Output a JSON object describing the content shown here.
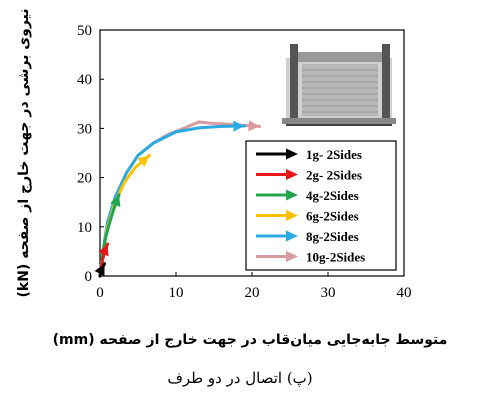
{
  "chart_data": {
    "type": "line",
    "ylabel": "نیروی برشی در جهت خارج از صفحه (kN)",
    "xlabel": "متوسط جابه‌جایی میان‌قاب در جهت خارج از صفحه (mm)",
    "caption": "(پ) اتصال در دو طرف",
    "xlim": [
      0,
      40
    ],
    "ylim": [
      0,
      50
    ],
    "xticks": [
      0,
      10,
      20,
      30,
      40
    ],
    "yticks": [
      0,
      10,
      20,
      30,
      40,
      50
    ],
    "legend_position": "bottom-right",
    "grid": false,
    "inset_image": "wall-specimen-schematic",
    "series": [
      {
        "name": "1g- 2Sides",
        "color": "#000000",
        "points": [
          [
            0,
            0
          ],
          [
            0.3,
            1.6
          ],
          [
            0.6,
            2.5
          ]
        ]
      },
      {
        "name": "2g- 2Sides",
        "color": "#e8161b",
        "points": [
          [
            0,
            0
          ],
          [
            0.3,
            3
          ],
          [
            0.6,
            5
          ],
          [
            1.0,
            6.5
          ]
        ]
      },
      {
        "name": "4g-2Sides",
        "color": "#21a64b",
        "points": [
          [
            0,
            0
          ],
          [
            0.3,
            4
          ],
          [
            0.7,
            7.5
          ],
          [
            1.2,
            10.5
          ],
          [
            1.8,
            13.5
          ],
          [
            2.5,
            16.5
          ]
        ]
      },
      {
        "name": "6g-2Sides",
        "color": "#ffc000",
        "points": [
          [
            0,
            0
          ],
          [
            0.4,
            5
          ],
          [
            1.0,
            10
          ],
          [
            2,
            15
          ],
          [
            3.2,
            19
          ],
          [
            4.6,
            22
          ],
          [
            6.5,
            24.5
          ]
        ]
      },
      {
        "name": "8g-2Sides",
        "color": "#29abe2",
        "points": [
          [
            0,
            0
          ],
          [
            0.4,
            5
          ],
          [
            1.0,
            11
          ],
          [
            2,
            16
          ],
          [
            3.5,
            21
          ],
          [
            5,
            24.5
          ],
          [
            7,
            27
          ],
          [
            10,
            29.3
          ],
          [
            13,
            30.1
          ],
          [
            16,
            30.4
          ],
          [
            19,
            30.5
          ]
        ]
      },
      {
        "name": "10g-2Sides",
        "color": "#d89a9e",
        "points": [
          [
            0,
            0
          ],
          [
            0.4,
            5
          ],
          [
            1.0,
            11
          ],
          [
            2,
            16
          ],
          [
            3.5,
            21
          ],
          [
            5,
            24.5
          ],
          [
            7,
            27
          ],
          [
            9,
            28.8
          ],
          [
            11,
            30
          ],
          [
            13,
            31.3
          ],
          [
            15,
            31
          ],
          [
            17.5,
            30.8
          ],
          [
            20,
            30.5
          ],
          [
            21,
            30.4
          ]
        ]
      }
    ]
  }
}
